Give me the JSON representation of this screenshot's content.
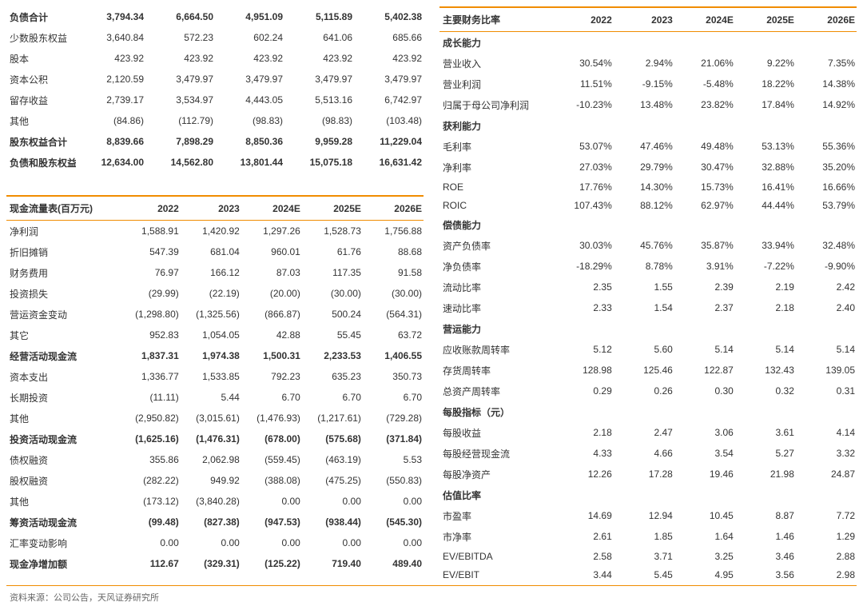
{
  "colors": {
    "accent": "#f08c00",
    "text": "#333333",
    "bg": "#ffffff"
  },
  "years": [
    "2022",
    "2023",
    "2024E",
    "2025E",
    "2026E"
  ],
  "source_line": "资料来源：公司公告，天风证券研究所",
  "left_top": [
    {
      "l": "负债合计",
      "v": [
        "3,794.34",
        "6,664.50",
        "4,951.09",
        "5,115.89",
        "5,402.38"
      ],
      "b": true
    },
    {
      "l": "少数股东权益",
      "v": [
        "3,640.84",
        "572.23",
        "602.24",
        "641.06",
        "685.66"
      ]
    },
    {
      "l": "股本",
      "v": [
        "423.92",
        "423.92",
        "423.92",
        "423.92",
        "423.92"
      ]
    },
    {
      "l": "资本公积",
      "v": [
        "2,120.59",
        "3,479.97",
        "3,479.97",
        "3,479.97",
        "3,479.97"
      ]
    },
    {
      "l": "留存收益",
      "v": [
        "2,739.17",
        "3,534.97",
        "4,443.05",
        "5,513.16",
        "6,742.97"
      ]
    },
    {
      "l": "其他",
      "v": [
        "(84.86)",
        "(112.79)",
        "(98.83)",
        "(98.83)",
        "(103.48)"
      ]
    },
    {
      "l": "股东权益合计",
      "v": [
        "8,839.66",
        "7,898.29",
        "8,850.36",
        "9,959.28",
        "11,229.04"
      ],
      "b": true
    },
    {
      "l": "负债和股东权益总计",
      "v": [
        "12,634.00",
        "14,562.80",
        "13,801.44",
        "15,075.18",
        "16,631.42"
      ],
      "b": true
    }
  ],
  "left_cf_header": "现金流量表(百万元)",
  "left_cf": [
    {
      "l": "净利润",
      "v": [
        "1,588.91",
        "1,420.92",
        "1,297.26",
        "1,528.73",
        "1,756.88"
      ]
    },
    {
      "l": "折旧摊销",
      "v": [
        "547.39",
        "681.04",
        "960.01",
        "61.76",
        "88.68"
      ]
    },
    {
      "l": "财务费用",
      "v": [
        "76.97",
        "166.12",
        "87.03",
        "117.35",
        "91.58"
      ]
    },
    {
      "l": "投资损失",
      "v": [
        "(29.99)",
        "(22.19)",
        "(20.00)",
        "(30.00)",
        "(30.00)"
      ]
    },
    {
      "l": "营运资金变动",
      "v": [
        "(1,298.80)",
        "(1,325.56)",
        "(866.87)",
        "500.24",
        "(564.31)"
      ]
    },
    {
      "l": "其它",
      "v": [
        "952.83",
        "1,054.05",
        "42.88",
        "55.45",
        "63.72"
      ]
    },
    {
      "l": "经营活动现金流",
      "v": [
        "1,837.31",
        "1,974.38",
        "1,500.31",
        "2,233.53",
        "1,406.55"
      ],
      "b": true
    },
    {
      "l": "资本支出",
      "v": [
        "1,336.77",
        "1,533.85",
        "792.23",
        "635.23",
        "350.73"
      ]
    },
    {
      "l": "长期投资",
      "v": [
        "(11.11)",
        "5.44",
        "6.70",
        "6.70",
        "6.70"
      ]
    },
    {
      "l": "其他",
      "v": [
        "(2,950.82)",
        "(3,015.61)",
        "(1,476.93)",
        "(1,217.61)",
        "(729.28)"
      ]
    },
    {
      "l": "投资活动现金流",
      "v": [
        "(1,625.16)",
        "(1,476.31)",
        "(678.00)",
        "(575.68)",
        "(371.84)"
      ],
      "b": true
    },
    {
      "l": "债权融资",
      "v": [
        "355.86",
        "2,062.98",
        "(559.45)",
        "(463.19)",
        "5.53"
      ]
    },
    {
      "l": "股权融资",
      "v": [
        "(282.22)",
        "949.92",
        "(388.08)",
        "(475.25)",
        "(550.83)"
      ]
    },
    {
      "l": "其他",
      "v": [
        "(173.12)",
        "(3,840.28)",
        "0.00",
        "0.00",
        "0.00"
      ]
    },
    {
      "l": "筹资活动现金流",
      "v": [
        "(99.48)",
        "(827.38)",
        "(947.53)",
        "(938.44)",
        "(545.30)"
      ],
      "b": true
    },
    {
      "l": "汇率变动影响",
      "v": [
        "0.00",
        "0.00",
        "0.00",
        "0.00",
        "0.00"
      ]
    },
    {
      "l": "现金净增加额",
      "v": [
        "112.67",
        "(329.31)",
        "(125.22)",
        "719.40",
        "489.40"
      ],
      "b": true
    }
  ],
  "right_header": "主要财务比率",
  "right": [
    {
      "sec": "成长能力"
    },
    {
      "l": "营业收入",
      "v": [
        "30.54%",
        "2.94%",
        "21.06%",
        "9.22%",
        "7.35%"
      ]
    },
    {
      "l": "营业利润",
      "v": [
        "11.51%",
        "-9.15%",
        "-5.48%",
        "18.22%",
        "14.38%"
      ]
    },
    {
      "l": "归属于母公司净利润",
      "v": [
        "-10.23%",
        "13.48%",
        "23.82%",
        "17.84%",
        "14.92%"
      ]
    },
    {
      "sec": "获利能力"
    },
    {
      "l": "毛利率",
      "v": [
        "53.07%",
        "47.46%",
        "49.48%",
        "53.13%",
        "55.36%"
      ]
    },
    {
      "l": "净利率",
      "v": [
        "27.03%",
        "29.79%",
        "30.47%",
        "32.88%",
        "35.20%"
      ]
    },
    {
      "l": "ROE",
      "v": [
        "17.76%",
        "14.30%",
        "15.73%",
        "16.41%",
        "16.66%"
      ]
    },
    {
      "l": "ROIC",
      "v": [
        "107.43%",
        "88.12%",
        "62.97%",
        "44.44%",
        "53.79%"
      ]
    },
    {
      "sec": "偿债能力"
    },
    {
      "l": "资产负债率",
      "v": [
        "30.03%",
        "45.76%",
        "35.87%",
        "33.94%",
        "32.48%"
      ]
    },
    {
      "l": "净负债率",
      "v": [
        "-18.29%",
        "8.78%",
        "3.91%",
        "-7.22%",
        "-9.90%"
      ]
    },
    {
      "l": "流动比率",
      "v": [
        "2.35",
        "1.55",
        "2.39",
        "2.19",
        "2.42"
      ]
    },
    {
      "l": "速动比率",
      "v": [
        "2.33",
        "1.54",
        "2.37",
        "2.18",
        "2.40"
      ]
    },
    {
      "sec": "营运能力"
    },
    {
      "l": "应收账款周转率",
      "v": [
        "5.12",
        "5.60",
        "5.14",
        "5.14",
        "5.14"
      ]
    },
    {
      "l": "存货周转率",
      "v": [
        "128.98",
        "125.46",
        "122.87",
        "132.43",
        "139.05"
      ]
    },
    {
      "l": "总资产周转率",
      "v": [
        "0.29",
        "0.26",
        "0.30",
        "0.32",
        "0.31"
      ]
    },
    {
      "sec": "每股指标（元）"
    },
    {
      "l": "每股收益",
      "v": [
        "2.18",
        "2.47",
        "3.06",
        "3.61",
        "4.14"
      ]
    },
    {
      "l": "每股经营现金流",
      "v": [
        "4.33",
        "4.66",
        "3.54",
        "5.27",
        "3.32"
      ]
    },
    {
      "l": "每股净资产",
      "v": [
        "12.26",
        "17.28",
        "19.46",
        "21.98",
        "24.87"
      ]
    },
    {
      "sec": "估值比率"
    },
    {
      "l": "市盈率",
      "v": [
        "14.69",
        "12.94",
        "10.45",
        "8.87",
        "7.72"
      ]
    },
    {
      "l": "市净率",
      "v": [
        "2.61",
        "1.85",
        "1.64",
        "1.46",
        "1.29"
      ]
    },
    {
      "l": "EV/EBITDA",
      "v": [
        "2.58",
        "3.71",
        "3.25",
        "3.46",
        "2.88"
      ]
    },
    {
      "l": "EV/EBIT",
      "v": [
        "3.44",
        "5.45",
        "4.95",
        "3.56",
        "2.98"
      ]
    }
  ]
}
